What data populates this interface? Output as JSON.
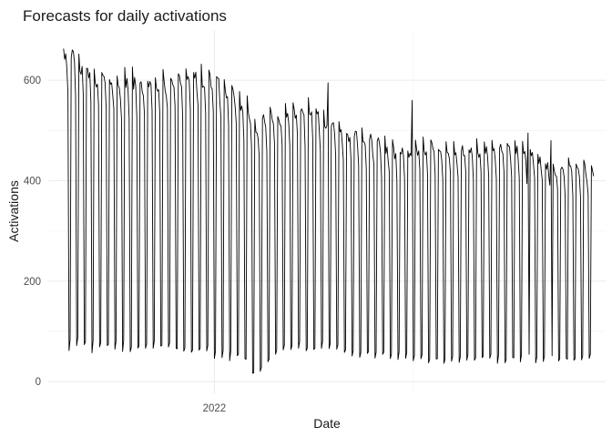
{
  "chart_data": {
    "type": "line",
    "title": "Forecasts for daily activations",
    "xlabel": "Date",
    "ylabel": "Activations",
    "x_ticks": [
      {
        "label": "2022",
        "date": "2022-01-01"
      }
    ],
    "y_ticks": [
      0,
      200,
      400,
      600
    ],
    "xlim": [
      "2021-08-02",
      "2022-12-25"
    ],
    "ylim": [
      -25,
      700
    ],
    "grid": true,
    "legend": "none",
    "series": [
      {
        "frequency": "daily",
        "start": "2021-08-16",
        "end": "2022-12-14",
        "weekly_pattern": [
          1.0,
          0.98,
          0.97,
          0.95,
          0.87,
          0.1,
          0.12
        ],
        "weekly_level": [
          [
            0,
            680
          ],
          [
            4,
            630
          ],
          [
            8,
            615
          ],
          [
            12,
            615
          ],
          [
            16,
            630
          ],
          [
            20,
            615
          ],
          [
            24,
            560
          ],
          [
            25,
            525
          ],
          [
            28,
            545
          ],
          [
            32,
            560
          ],
          [
            36,
            515
          ],
          [
            40,
            495
          ],
          [
            44,
            470
          ],
          [
            48,
            480
          ],
          [
            52,
            470
          ],
          [
            56,
            480
          ],
          [
            60,
            475
          ],
          [
            64,
            440
          ],
          [
            68,
            435
          ],
          [
            72,
            420
          ],
          [
            76,
            420
          ],
          [
            80,
            420
          ],
          [
            84,
            415
          ],
          [
            88,
            410
          ],
          [
            92,
            405
          ],
          [
            96,
            380
          ],
          [
            100,
            355
          ],
          [
            104,
            330
          ],
          [
            105,
            325
          ]
        ],
        "weekly_low": [
          [
            0,
            70
          ],
          [
            4,
            60
          ],
          [
            8,
            60
          ],
          [
            12,
            60
          ],
          [
            16,
            55
          ],
          [
            20,
            50
          ],
          [
            24,
            40
          ],
          [
            25,
            10
          ],
          [
            28,
            55
          ],
          [
            32,
            60
          ],
          [
            36,
            55
          ],
          [
            40,
            50
          ],
          [
            44,
            45
          ],
          [
            48,
            40
          ],
          [
            52,
            40
          ],
          [
            56,
            40
          ],
          [
            60,
            40
          ],
          [
            64,
            40
          ],
          [
            68,
            40
          ],
          [
            72,
            40
          ],
          [
            76,
            40
          ],
          [
            80,
            40
          ],
          [
            84,
            40
          ],
          [
            88,
            40
          ],
          [
            92,
            40
          ],
          [
            96,
            35
          ],
          [
            100,
            30
          ],
          [
            104,
            25
          ],
          [
            105,
            20
          ]
        ],
        "spikes": [
          {
            "date": "2022-04-15",
            "value": 595
          },
          {
            "date": "2022-07-01",
            "value": 560
          },
          {
            "date": "2022-10-15",
            "value": 495
          },
          {
            "date": "2022-11-05",
            "value": 480
          }
        ]
      }
    ]
  }
}
